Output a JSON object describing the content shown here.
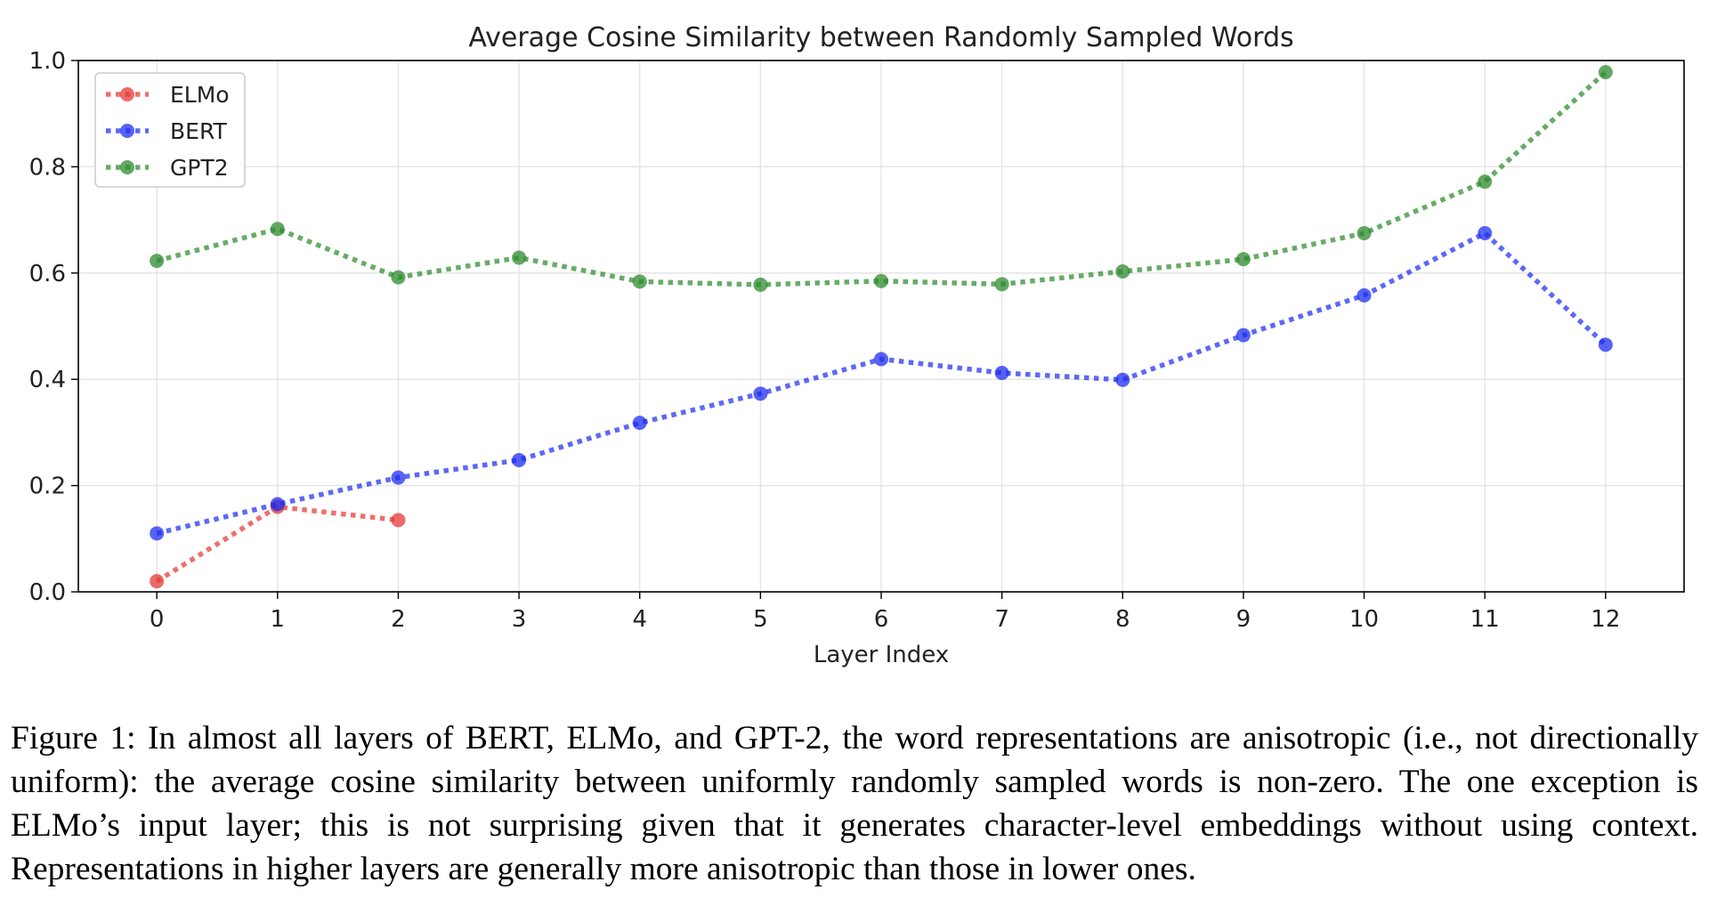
{
  "chart_data": {
    "type": "line",
    "title": "Average Cosine Similarity between Randomly Sampled Words",
    "xlabel": "Layer Index",
    "ylabel": "",
    "x": [
      0,
      1,
      2,
      3,
      4,
      5,
      6,
      7,
      8,
      9,
      10,
      11,
      12
    ],
    "x_tick_labels": [
      "0",
      "1",
      "2",
      "3",
      "4",
      "5",
      "6",
      "7",
      "8",
      "9",
      "10",
      "11",
      "12"
    ],
    "y_ticks": [
      0.0,
      0.2,
      0.4,
      0.6,
      0.8,
      1.0
    ],
    "y_tick_labels": [
      "0.0",
      "0.2",
      "0.4",
      "0.6",
      "0.8",
      "1.0"
    ],
    "xlim": [
      -0.65,
      12.65
    ],
    "ylim": [
      0.0,
      1.0
    ],
    "grid": true,
    "legend_position": "top-left",
    "line_style": "dotted",
    "series": [
      {
        "name": "ELMo",
        "color": "#e53935",
        "x": [
          0,
          1,
          2
        ],
        "values": [
          0.02,
          0.16,
          0.135
        ]
      },
      {
        "name": "BERT",
        "color": "#1f2ff0",
        "x": [
          0,
          1,
          2,
          3,
          4,
          5,
          6,
          7,
          8,
          9,
          10,
          11,
          12
        ],
        "values": [
          0.11,
          0.165,
          0.215,
          0.248,
          0.318,
          0.373,
          0.438,
          0.412,
          0.399,
          0.483,
          0.558,
          0.675,
          0.465
        ]
      },
      {
        "name": "GPT2",
        "color": "#2e8b2e",
        "x": [
          0,
          1,
          2,
          3,
          4,
          5,
          6,
          7,
          8,
          9,
          10,
          11,
          12
        ],
        "values": [
          0.623,
          0.683,
          0.592,
          0.629,
          0.584,
          0.578,
          0.585,
          0.579,
          0.603,
          0.626,
          0.675,
          0.772,
          0.978
        ]
      }
    ]
  },
  "caption": {
    "text": "Figure 1: In almost all layers of BERT, ELMo, and GPT-2, the word representations are anisotropic (i.e., not directionally uniform): the average cosine similarity between uniformly randomly sampled words is non-zero. The one exception is ELMo’s input layer; this is not surprising given that it generates character-level embeddings without using context. Representations in higher layers are generally more anisotropic than those in lower ones."
  }
}
